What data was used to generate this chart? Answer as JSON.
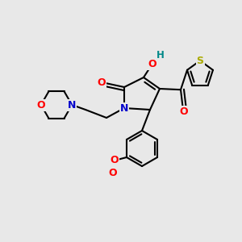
{
  "background_color": "#e8e8e8",
  "atom_colors": {
    "C": "#000000",
    "N": "#0000cc",
    "O": "#ff0000",
    "S": "#aaaa00",
    "H": "#008888"
  },
  "bond_color": "#000000",
  "bond_lw": 1.5,
  "figsize": [
    3.0,
    3.0
  ],
  "dpi": 100
}
